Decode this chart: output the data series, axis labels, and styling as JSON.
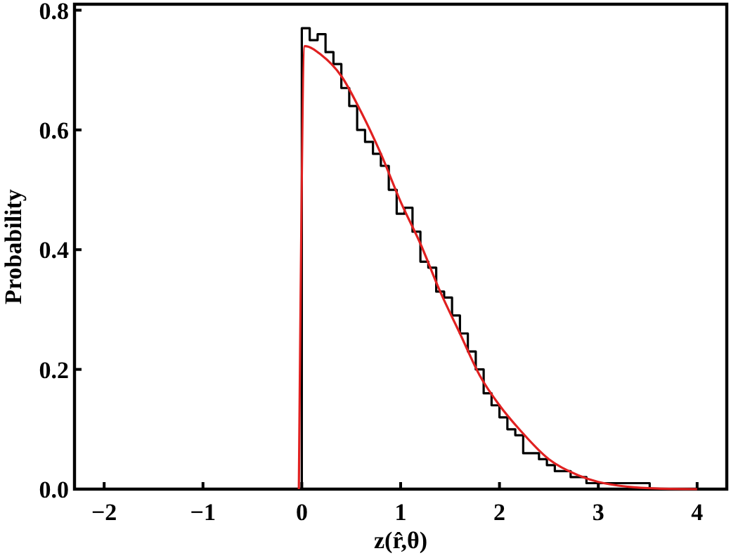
{
  "chart_data": {
    "type": "step",
    "xlabel": "z(r̂,θ)",
    "ylabel": "Probability",
    "xlim": [
      -2.3,
      4.3
    ],
    "ylim": [
      0,
      0.81
    ],
    "xticks": [
      -2,
      -1,
      0,
      1,
      2,
      3,
      4
    ],
    "yticks": [
      {
        "value": 0,
        "label": "0.0"
      },
      0.2,
      0.4,
      0.6,
      0.8
    ],
    "grid": false,
    "series": [
      {
        "color": "#000000",
        "x": [
          -0.08,
          0,
          0.08,
          0.16,
          0.24,
          0.32,
          0.4,
          0.48,
          0.56,
          0.64,
          0.72,
          0.8,
          0.88,
          0.96,
          1.04,
          1.12,
          1.2,
          1.28,
          1.36,
          1.44,
          1.52,
          1.6,
          1.68,
          1.76,
          1.84,
          1.92,
          2.0,
          2.08,
          2.16,
          2.24,
          2.32,
          2.4,
          2.48,
          2.56,
          2.64,
          2.72,
          2.8,
          2.88,
          2.96,
          3.04,
          3.12,
          3.2,
          3.28,
          3.36,
          3.44,
          3.52
        ],
        "values": [
          0,
          0.77,
          0.75,
          0.76,
          0.73,
          0.71,
          0.67,
          0.64,
          0.6,
          0.58,
          0.56,
          0.54,
          0.5,
          0.46,
          0.47,
          0.43,
          0.38,
          0.37,
          0.33,
          0.32,
          0.29,
          0.26,
          0.23,
          0.2,
          0.16,
          0.14,
          0.12,
          0.1,
          0.09,
          0.06,
          0.06,
          0.05,
          0.04,
          0.03,
          0.03,
          0.02,
          0.02,
          0.01,
          0.01,
          0.01,
          0.01,
          0.01,
          0.01,
          0.01,
          0.01,
          0
        ]
      },
      {
        "type": "line",
        "color": "#e02020",
        "x": [
          -0.03,
          0.03,
          0.2,
          0.4,
          0.6,
          0.8,
          1.0,
          1.2,
          1.4,
          1.6,
          1.8,
          2.0,
          2.2,
          2.5,
          2.8,
          3.0,
          3.3,
          3.6,
          4.0
        ],
        "values": [
          0,
          0.74,
          0.725,
          0.69,
          0.63,
          0.56,
          0.48,
          0.41,
          0.33,
          0.26,
          0.19,
          0.14,
          0.1,
          0.05,
          0.023,
          0.012,
          0.004,
          0.001,
          0
        ]
      }
    ]
  }
}
